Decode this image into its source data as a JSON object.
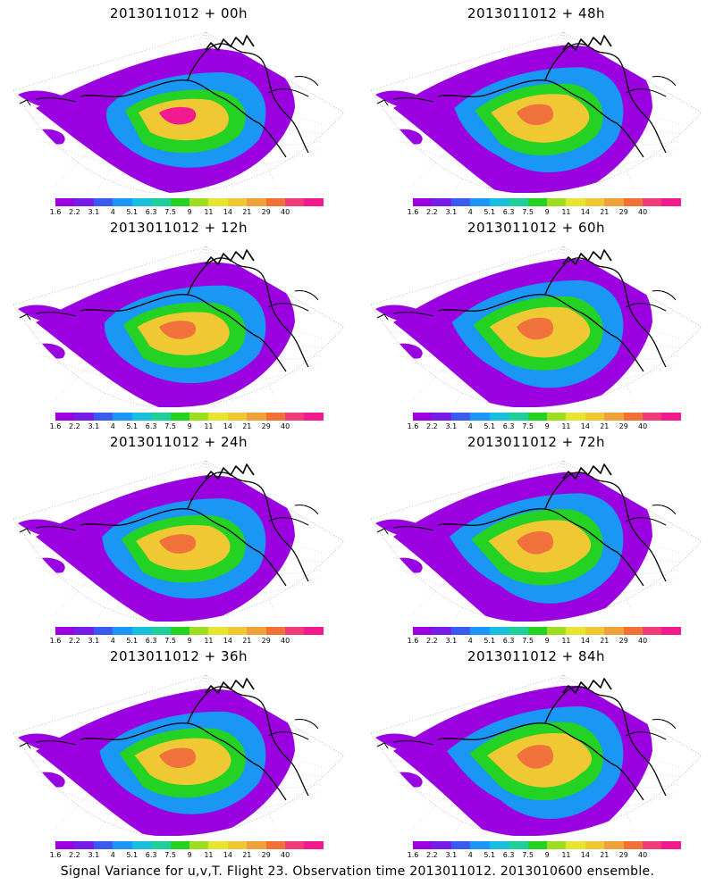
{
  "panels": [
    {
      "id": "p00",
      "title": "2013011012 + 00h",
      "forecast_hour": 0
    },
    {
      "id": "p48",
      "title": "2013011012 + 48h",
      "forecast_hour": 48
    },
    {
      "id": "p12",
      "title": "2013011012 + 12h",
      "forecast_hour": 12
    },
    {
      "id": "p60",
      "title": "2013011012 + 60h",
      "forecast_hour": 60
    },
    {
      "id": "p24",
      "title": "2013011012 + 24h",
      "forecast_hour": 24
    },
    {
      "id": "p72",
      "title": "2013011012 + 72h",
      "forecast_hour": 72
    },
    {
      "id": "p36",
      "title": "2013011012 + 36h",
      "forecast_hour": 36
    },
    {
      "id": "p84",
      "title": "2013011012 + 84h",
      "forecast_hour": 84
    }
  ],
  "colorbar": {
    "levels": [
      "1.6",
      "2.2",
      "3.1",
      "4",
      "5.1",
      "6.3",
      "7.5",
      "9",
      "11",
      "14",
      "21",
      "29",
      "40"
    ],
    "colors": [
      "#9b00e0",
      "#7a1ce8",
      "#3c5af0",
      "#1a96f5",
      "#14c0dc",
      "#1ecf9e",
      "#23d223",
      "#9edd21",
      "#e6e632",
      "#f0c833",
      "#f0a03a",
      "#f0713c",
      "#f03c7a",
      "#f21a91"
    ]
  },
  "caption": "Signal Variance for u,v,T. Flight 23. Observation time 2013011012. 2013010600 ensemble."
}
